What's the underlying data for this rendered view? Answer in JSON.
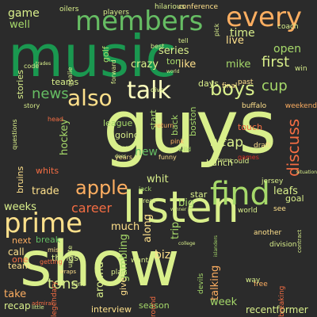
{
  "wordcloud": {
    "palette": [
      "#a6d96a",
      "#66bd63",
      "#1a9850",
      "#d9ef8b",
      "#fee08b",
      "#fdae61",
      "#f46d43",
      "#d73027"
    ],
    "words": [
      {
        "text": "guys",
        "size": 92,
        "color": "#d9ef8b",
        "vertical": false
      },
      {
        "text": "music",
        "size": 72,
        "color": "#1a9850",
        "vertical": false
      },
      {
        "text": "show",
        "size": 78,
        "color": "#d9ef8b",
        "vertical": false
      },
      {
        "text": "listen",
        "size": 54,
        "color": "#d9ef8b",
        "vertical": false
      },
      {
        "text": "prime",
        "size": 34,
        "color": "#fee08b",
        "vertical": false
      },
      {
        "text": "find",
        "size": 40,
        "color": "#a6d96a",
        "vertical": false
      },
      {
        "text": "members",
        "size": 34,
        "color": "#66bd63",
        "vertical": false
      },
      {
        "text": "every",
        "size": 34,
        "color": "#fdae61",
        "vertical": false
      },
      {
        "text": "talk",
        "size": 30,
        "color": "#ffffbf",
        "vertical": false
      },
      {
        "text": "also",
        "size": 28,
        "color": "#fee08b",
        "vertical": false
      },
      {
        "text": "boys",
        "size": 24,
        "color": "#d9ef8b",
        "vertical": false
      },
      {
        "text": "apple",
        "size": 24,
        "color": "#fdae61",
        "vertical": false
      },
      {
        "text": "discuss",
        "size": 20,
        "color": "#f46d43",
        "vertical": true
      },
      {
        "text": "first",
        "size": 18,
        "color": "#d9ef8b",
        "vertical": false
      },
      {
        "text": "news",
        "size": 18,
        "color": "#66bd63",
        "vertical": false
      },
      {
        "text": "cup",
        "size": 18,
        "color": "#a6d96a",
        "vertical": false
      },
      {
        "text": "wrap",
        "size": 17,
        "color": "#d9ef8b",
        "vertical": false
      },
      {
        "text": "tons",
        "size": 18,
        "color": "#d9ef8b",
        "vertical": false
      },
      {
        "text": "career",
        "size": 16,
        "color": "#f46d43",
        "vertical": false
      },
      {
        "text": "game",
        "size": 14,
        "color": "#d9ef8b",
        "vertical": false
      },
      {
        "text": "well",
        "size": 13,
        "color": "#a6d96a",
        "vertical": false
      },
      {
        "text": "time",
        "size": 14,
        "color": "#d9ef8b",
        "vertical": false
      },
      {
        "text": "open",
        "size": 14,
        "color": "#a6d96a",
        "vertical": false
      },
      {
        "text": "live",
        "size": 13,
        "color": "#fee08b",
        "vertical": false
      },
      {
        "text": "series",
        "size": 13,
        "color": "#d9ef8b",
        "vertical": false
      },
      {
        "text": "mike",
        "size": 13,
        "color": "#a6d96a",
        "vertical": false
      },
      {
        "text": "like",
        "size": 13,
        "color": "#fee08b",
        "vertical": false
      },
      {
        "text": "crazy",
        "size": 13,
        "color": "#d9ef8b",
        "vertical": false
      },
      {
        "text": "new",
        "size": 14,
        "color": "#66bd63",
        "vertical": false
      },
      {
        "text": "whit",
        "size": 13,
        "color": "#d9ef8b",
        "vertical": false
      },
      {
        "text": "hockey",
        "size": 13,
        "color": "#a6d96a",
        "vertical": true
      },
      {
        "text": "trade",
        "size": 13,
        "color": "#fee08b",
        "vertical": false
      },
      {
        "text": "weeks",
        "size": 13,
        "color": "#d9ef8b",
        "vertical": false
      },
      {
        "text": "much",
        "size": 13,
        "color": "#fee08b",
        "vertical": false
      },
      {
        "text": "along",
        "size": 13,
        "color": "#fee08b",
        "vertical": true
      },
      {
        "text": "gambling",
        "size": 13,
        "color": "#a6d96a",
        "vertical": true
      },
      {
        "text": "around",
        "size": 13,
        "color": "#d9ef8b",
        "vertical": true
      },
      {
        "text": "biz",
        "size": 14,
        "color": "#fee08b",
        "vertical": false
      },
      {
        "text": "trip",
        "size": 13,
        "color": "#a6d96a",
        "vertical": true
      },
      {
        "text": "big",
        "size": 13,
        "color": "#a6d96a",
        "vertical": false
      },
      {
        "text": "talking",
        "size": 13,
        "color": "#fdae61",
        "vertical": true
      },
      {
        "text": "leafs",
        "size": 13,
        "color": "#d9ef8b",
        "vertical": false
      },
      {
        "text": "goal",
        "size": 11,
        "color": "#d9ef8b",
        "vertical": false
      },
      {
        "text": "week",
        "size": 13,
        "color": "#a6d96a",
        "vertical": false
      },
      {
        "text": "recentformer",
        "size": 12,
        "color": "#d9ef8b",
        "vertical": false
      },
      {
        "text": "season",
        "size": 11,
        "color": "#a6d96a",
        "vertical": false
      },
      {
        "text": "interview",
        "size": 11,
        "color": "#fee08b",
        "vertical": false
      },
      {
        "text": "recap",
        "size": 12,
        "color": "#d9ef8b",
        "vertical": false
      },
      {
        "text": "take",
        "size": 13,
        "color": "#fdae61",
        "vertical": false
      },
      {
        "text": "call",
        "size": 12,
        "color": "#fee08b",
        "vertical": false
      },
      {
        "text": "next",
        "size": 11,
        "color": "#fdae61",
        "vertical": false
      },
      {
        "text": "break",
        "size": 11,
        "color": "#66bd63",
        "vertical": false
      },
      {
        "text": "team",
        "size": 11,
        "color": "#fee08b",
        "vertical": false
      },
      {
        "text": "things",
        "size": 11,
        "color": "#d9ef8b",
        "vertical": false
      },
      {
        "text": "give",
        "size": 11,
        "color": "#fee08b",
        "vertical": true
      },
      {
        "text": "one",
        "size": 11,
        "color": "#f46d43",
        "vertical": false
      },
      {
        "text": "stories",
        "size": 11,
        "color": "#d9ef8b",
        "vertical": true
      },
      {
        "text": "teams",
        "size": 11,
        "color": "#d9ef8b",
        "vertical": false
      },
      {
        "text": "bruins",
        "size": 11,
        "color": "#fee08b",
        "vertical": true
      },
      {
        "text": "whits",
        "size": 11,
        "color": "#f46d43",
        "vertical": false
      },
      {
        "text": "league",
        "size": 11,
        "color": "#a6d96a",
        "vertical": false
      },
      {
        "text": "going",
        "size": 11,
        "color": "#d9ef8b",
        "vertical": false
      },
      {
        "text": "start",
        "size": 11,
        "color": "#a6d96a",
        "vertical": true
      },
      {
        "text": "boston",
        "size": 11,
        "color": "#a6d96a",
        "vertical": true
      },
      {
        "text": "days",
        "size": 11,
        "color": "#d9ef8b",
        "vertical": false
      },
      {
        "text": "touch",
        "size": 11,
        "color": "#f46d43",
        "vertical": false
      },
      {
        "text": "last",
        "size": 11,
        "color": "#d9ef8b",
        "vertical": false
      },
      {
        "text": "bunch",
        "size": 11,
        "color": "#d9ef8b",
        "vertical": false
      },
      {
        "text": "back",
        "size": 11,
        "color": "#a6d96a",
        "vertical": true
      },
      {
        "text": "star",
        "size": 11,
        "color": "#d9ef8b",
        "vertical": false
      },
      {
        "text": "jersey",
        "size": 9,
        "color": "#d9ef8b",
        "vertical": false
      },
      {
        "text": "ton",
        "size": 11,
        "color": "#a6d96a",
        "vertical": false
      },
      {
        "text": "golf",
        "size": 11,
        "color": "#a6d96a",
        "vertical": true
      },
      {
        "text": "players",
        "size": 9,
        "color": "#d9ef8b",
        "vertical": false
      },
      {
        "text": "oilers",
        "size": 9,
        "color": "#d9ef8b",
        "vertical": false
      },
      {
        "text": "hilarious",
        "size": 9,
        "color": "#d9ef8b",
        "vertical": false
      },
      {
        "text": "conference",
        "size": 9,
        "color": "#fee08b",
        "vertical": false
      },
      {
        "text": "coach",
        "size": 9,
        "color": "#d9ef8b",
        "vertical": false
      },
      {
        "text": "win",
        "size": 9,
        "color": "#d9ef8b",
        "vertical": false
      },
      {
        "text": "final",
        "size": 9,
        "color": "#fee08b",
        "vertical": false
      },
      {
        "text": "past",
        "size": 9,
        "color": "#fee08b",
        "vertical": false
      },
      {
        "text": "buffalo",
        "size": 9,
        "color": "#fee08b",
        "vertical": false
      },
      {
        "text": "weekend",
        "size": 9,
        "color": "#fdae61",
        "vertical": false
      },
      {
        "text": "draft",
        "size": 9,
        "color": "#fee08b",
        "vertical": false
      },
      {
        "text": "could",
        "size": 9,
        "color": "#d9ef8b",
        "vertical": false
      },
      {
        "text": "world",
        "size": 9,
        "color": "#d9ef8b",
        "vertical": false
      },
      {
        "text": "see",
        "size": 9,
        "color": "#fee08b",
        "vertical": false
      },
      {
        "text": "another",
        "size": 9,
        "color": "#fee08b",
        "vertical": false
      },
      {
        "text": "division",
        "size": 9,
        "color": "#d9ef8b",
        "vertical": false
      },
      {
        "text": "breaking",
        "size": 9,
        "color": "#f46d43",
        "vertical": true
      },
      {
        "text": "devils",
        "size": 9,
        "color": "#a6d96a",
        "vertical": true
      },
      {
        "text": "free",
        "size": 9,
        "color": "#fdae61",
        "vertical": false
      },
      {
        "text": "way",
        "size": 9,
        "color": "#d9ef8b",
        "vertical": false
      },
      {
        "text": "round",
        "size": 9,
        "color": "#f46d43",
        "vertical": true
      },
      {
        "text": "want",
        "size": 9,
        "color": "#d9ef8b",
        "vertical": false
      },
      {
        "text": "legendary",
        "size": 9,
        "color": "#f46d43",
        "vertical": true
      },
      {
        "text": "play",
        "size": 9,
        "color": "#d9ef8b",
        "vertical": false
      },
      {
        "text": "tune",
        "size": 8,
        "color": "#d9ef8b",
        "vertical": false
      },
      {
        "text": "head",
        "size": 8,
        "color": "#f46d43",
        "vertical": false
      },
      {
        "text": "getting",
        "size": 8,
        "color": "#f46d43",
        "vertical": false
      },
      {
        "text": "goalie",
        "size": 8,
        "color": "#d9ef8b",
        "vertical": true
      },
      {
        "text": "story",
        "size": 8,
        "color": "#d9ef8b",
        "vertical": false
      },
      {
        "text": "questions",
        "size": 8,
        "color": "#d9ef8b",
        "vertical": true
      },
      {
        "text": "update",
        "size": 8,
        "color": "#d9ef8b",
        "vertical": true
      },
      {
        "text": "forward",
        "size": 8,
        "color": "#d9ef8b",
        "vertical": true
      },
      {
        "text": "best",
        "size": 8,
        "color": "#d9ef8b",
        "vertical": false
      },
      {
        "text": "tell",
        "size": 8,
        "color": "#d9ef8b",
        "vertical": false
      },
      {
        "text": "pick",
        "size": 8,
        "color": "#d9ef8b",
        "vertical": true
      },
      {
        "text": "pink",
        "size": 8,
        "color": "#fdae61",
        "vertical": false
      },
      {
        "text": "return",
        "size": 8,
        "color": "#fdae61",
        "vertical": false
      },
      {
        "text": "games",
        "size": 8,
        "color": "#d73027",
        "vertical": false
      },
      {
        "text": "years",
        "size": 8,
        "color": "#fee08b",
        "vertical": false
      },
      {
        "text": "blues",
        "size": 8,
        "color": "#d9ef8b",
        "vertical": false
      },
      {
        "text": "jack",
        "size": 8,
        "color": "#a6d96a",
        "vertical": false
      },
      {
        "text": "funny",
        "size": 8,
        "color": "#fee08b",
        "vertical": false
      },
      {
        "text": "miss",
        "size": 8,
        "color": "#fee08b",
        "vertical": false
      },
      {
        "text": "wraps",
        "size": 7,
        "color": "#fee08b",
        "vertical": false
      },
      {
        "text": "admiral",
        "size": 7,
        "color": "#f46d43",
        "vertical": false
      },
      {
        "text": "little",
        "size": 7,
        "color": "#d9ef8b",
        "vertical": false
      },
      {
        "text": "winner",
        "size": 6,
        "color": "#d9ef8b",
        "vertical": false
      },
      {
        "text": "college",
        "size": 6,
        "color": "#d9ef8b",
        "vertical": false
      },
      {
        "text": "islanders",
        "size": 6,
        "color": "#a6d96a",
        "vertical": true
      },
      {
        "text": "contract",
        "size": 7,
        "color": "#d9ef8b",
        "vertical": true
      },
      {
        "text": "situation",
        "size": 6,
        "color": "#d9ef8b",
        "vertical": false
      },
      {
        "text": "great",
        "size": 8,
        "color": "#d9ef8b",
        "vertical": false
      },
      {
        "text": "terms",
        "size": 6,
        "color": "#d9ef8b",
        "vertical": false
      },
      {
        "text": "dive",
        "size": 8,
        "color": "#d9ef8b",
        "vertical": false
      },
      {
        "text": "code",
        "size": 8,
        "color": "#d9ef8b",
        "vertical": false
      },
      {
        "text": "trades",
        "size": 6,
        "color": "#d9ef8b",
        "vertical": false
      },
      {
        "text": "does",
        "size": 6,
        "color": "#d9ef8b",
        "vertical": false
      },
      {
        "text": "wild",
        "size": 8,
        "color": "#a6d96a",
        "vertical": false
      },
      {
        "text": "world",
        "size": 6,
        "color": "#d9ef8b",
        "vertical": false
      }
    ]
  }
}
